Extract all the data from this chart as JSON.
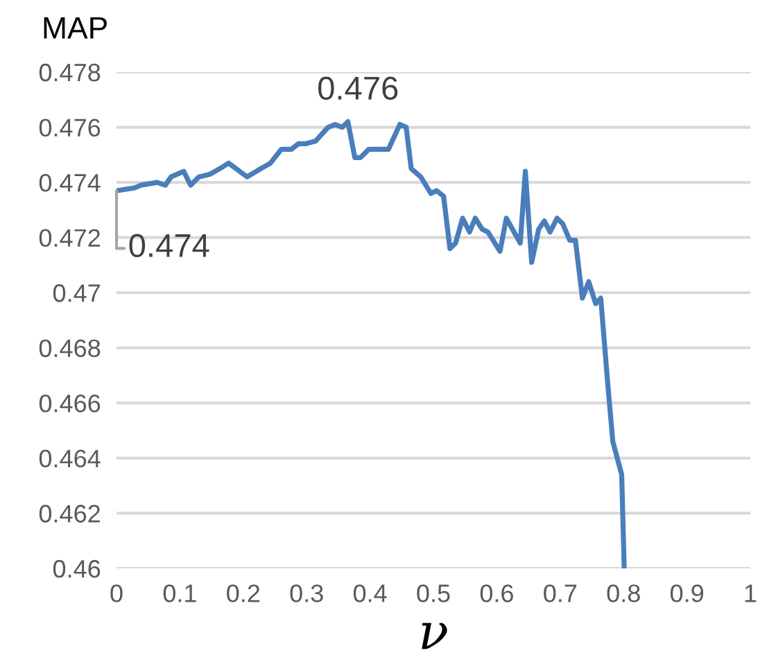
{
  "chart_data": {
    "type": "line",
    "ylabel": "MAP",
    "xlabel": "ν",
    "x": [
      0,
      0.028,
      0.039,
      0.064,
      0.077,
      0.086,
      0.106,
      0.117,
      0.13,
      0.148,
      0.163,
      0.177,
      0.206,
      0.228,
      0.243,
      0.26,
      0.276,
      0.287,
      0.298,
      0.314,
      0.334,
      0.345,
      0.356,
      0.365,
      0.376,
      0.385,
      0.398,
      0.411,
      0.418,
      0.429,
      0.447,
      0.457,
      0.465,
      0.48,
      0.496,
      0.505,
      0.516,
      0.526,
      0.535,
      0.546,
      0.557,
      0.566,
      0.577,
      0.586,
      0.605,
      0.615,
      0.637,
      0.645,
      0.655,
      0.666,
      0.675,
      0.684,
      0.695,
      0.704,
      0.715,
      0.724,
      0.735,
      0.745,
      0.756,
      0.764,
      0.775,
      0.783,
      0.797,
      0.801
    ],
    "series": [
      {
        "color": "#4a7ebb",
        "values": [
          0.4737,
          0.4738,
          0.4739,
          0.474,
          0.4739,
          0.4742,
          0.4744,
          0.4739,
          0.4742,
          0.4743,
          0.4745,
          0.4747,
          0.4742,
          0.4745,
          0.4747,
          0.4752,
          0.4752,
          0.4754,
          0.4754,
          0.4755,
          0.476,
          0.4761,
          0.476,
          0.4762,
          0.4749,
          0.4749,
          0.4752,
          0.4752,
          0.4752,
          0.4752,
          0.4761,
          0.476,
          0.4745,
          0.4742,
          0.4736,
          0.4737,
          0.4735,
          0.4716,
          0.4718,
          0.4727,
          0.4722,
          0.4727,
          0.4723,
          0.4722,
          0.4715,
          0.4727,
          0.4718,
          0.4744,
          0.4711,
          0.4723,
          0.4726,
          0.4722,
          0.4727,
          0.4725,
          0.4719,
          0.4719,
          0.4698,
          0.4704,
          0.4696,
          0.4698,
          0.4667,
          0.4646,
          0.4634,
          0.46
        ]
      }
    ],
    "annotations": [
      {
        "text": "0.474",
        "x": 0,
        "y": 0.4737
      },
      {
        "text": "0.476",
        "x": 0.365,
        "y": 0.4762
      }
    ],
    "xlim": [
      0,
      1
    ],
    "xticks": [
      0,
      0.1,
      0.2,
      0.3,
      0.4,
      0.5,
      0.6,
      0.7,
      0.8,
      0.9,
      1
    ],
    "ylim": [
      0.46,
      0.478
    ],
    "yticks": [
      0.46,
      0.462,
      0.464,
      0.466,
      0.468,
      0.47,
      0.472,
      0.474,
      0.476,
      0.478
    ],
    "grid": "y",
    "legend": false,
    "marker": "none",
    "line_style": "solid"
  }
}
